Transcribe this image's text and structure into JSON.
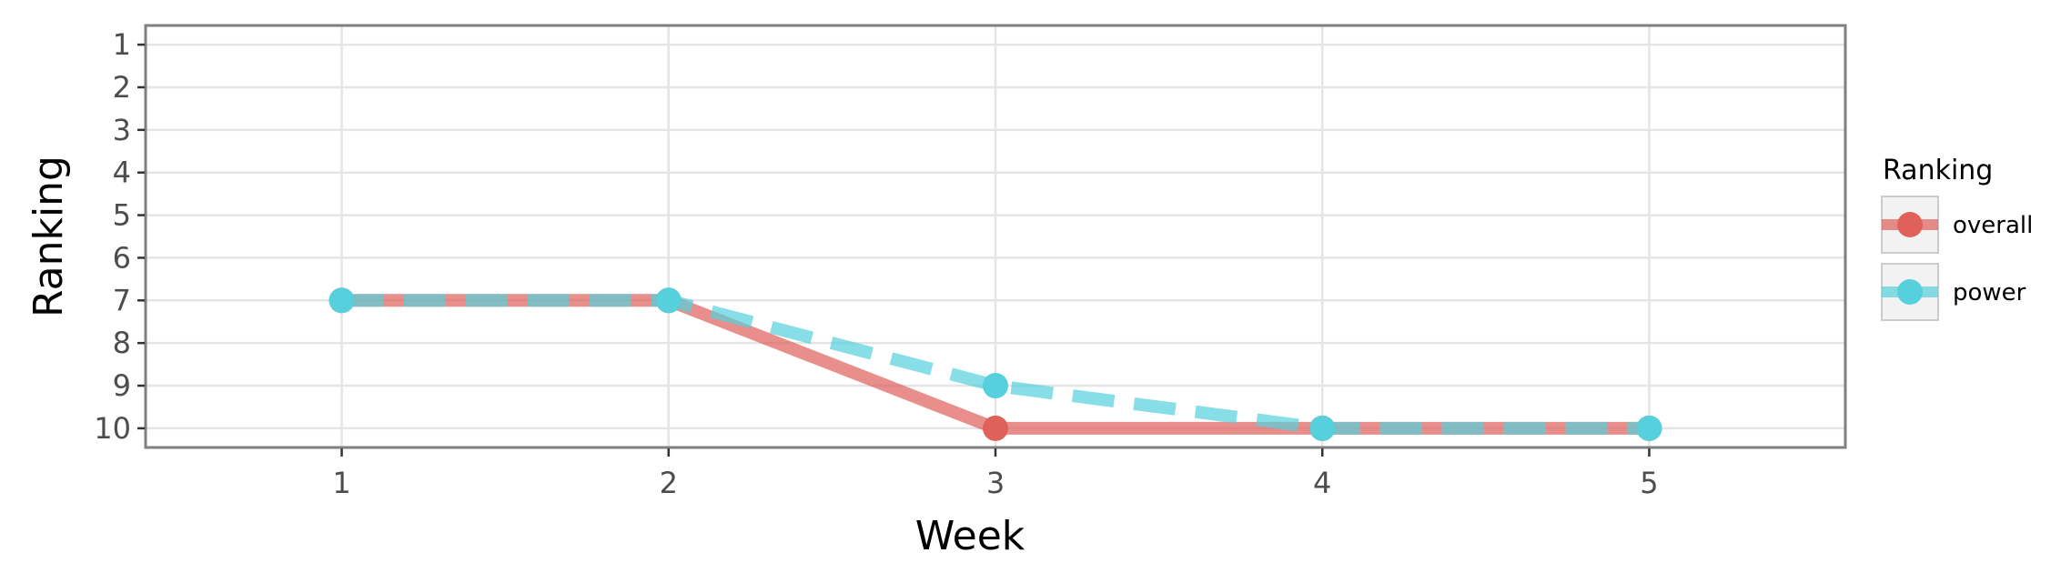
{
  "chart_data": {
    "type": "line",
    "xlabel": "Week",
    "ylabel": "Ranking",
    "x": [
      1,
      2,
      3,
      4,
      5
    ],
    "xlim": [
      0.4,
      5.6
    ],
    "ylim": [
      10.45,
      0.55
    ],
    "y_reversed": true,
    "xticks": [
      "1",
      "2",
      "3",
      "4",
      "5"
    ],
    "yticks": [
      "1",
      "2",
      "3",
      "4",
      "5",
      "6",
      "7",
      "8",
      "9",
      "10"
    ],
    "grid": true,
    "legend": {
      "title": "Ranking",
      "position": "right"
    },
    "series": [
      {
        "name": "overall",
        "values": [
          7,
          7,
          10,
          10,
          10
        ],
        "color": "#E0605A",
        "line_style": "solid"
      },
      {
        "name": "power",
        "values": [
          7,
          7,
          9,
          10,
          10
        ],
        "color": "#55D0DC",
        "line_style": "dashed"
      }
    ]
  }
}
